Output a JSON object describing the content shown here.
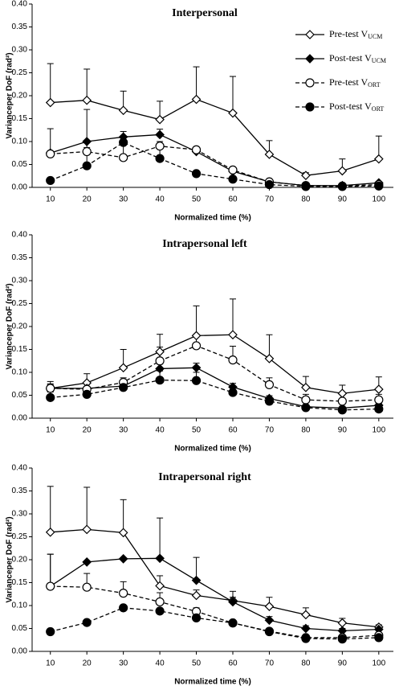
{
  "chart_data": [
    {
      "type": "line",
      "title": "Interpersonal",
      "xlabel": "Normalized time (%)",
      "ylabel": "Varianceper DoF (rad²)",
      "x": [
        10,
        20,
        30,
        40,
        50,
        60,
        70,
        80,
        90,
        100
      ],
      "xlim": [
        5,
        104
      ],
      "xticks": [
        10,
        20,
        30,
        40,
        50,
        60,
        70,
        80,
        90,
        100
      ],
      "ylim": [
        0,
        0.4
      ],
      "yticks": [
        {
          "value": 0,
          "label": "0.00"
        },
        {
          "value": 0.05,
          "label": "0.05"
        },
        {
          "value": 0.1,
          "label": "0.10"
        },
        {
          "value": 0.15,
          "label": "0.15"
        },
        {
          "value": 0.2,
          "label": "0.20"
        },
        {
          "value": 0.25,
          "label": "0.25"
        },
        {
          "value": 0.3,
          "label": "0.30"
        },
        {
          "value": 0.35,
          "label": "0.35"
        },
        {
          "value": 0.4,
          "label": "0.40"
        }
      ],
      "legend": "top-right",
      "series": [
        {
          "name": "Pre-test V",
          "name_sub": "UCM",
          "color": "#000",
          "marker": "diamond",
          "filled": false,
          "dashed": false,
          "values": [
            0.185,
            0.19,
            0.168,
            0.148,
            0.192,
            0.162,
            0.072,
            0.026,
            0.036,
            0.062
          ],
          "errors": [
            0.085,
            0.068,
            0.042,
            0.04,
            0.071,
            0.08,
            0.03,
            0.006,
            0.026,
            0.05
          ]
        },
        {
          "name": "Post-test V",
          "name_sub": "UCM",
          "color": "#000",
          "marker": "diamond",
          "filled": true,
          "dashed": false,
          "values": [
            0.075,
            0.1,
            0.11,
            0.115,
            0.078,
            0.035,
            0.012,
            0.004,
            0.004,
            0.01
          ],
          "errors": [
            null,
            0.07,
            0.012,
            0.012,
            0.008,
            0.006,
            0.004,
            null,
            null,
            null
          ]
        },
        {
          "name": "Pre-test V",
          "name_sub": "ORT",
          "color": "#000",
          "marker": "circle",
          "filled": false,
          "dashed": true,
          "values": [
            0.073,
            0.078,
            0.065,
            0.09,
            0.082,
            0.038,
            0.012,
            0.004,
            0.003,
            0.006
          ],
          "errors": [
            0.055,
            0.02,
            0.03,
            0.01,
            0.006,
            0.004,
            0.003,
            null,
            null,
            null
          ]
        },
        {
          "name": "Post-test V",
          "name_sub": "ORT",
          "color": "#000",
          "marker": "circle",
          "filled": true,
          "dashed": true,
          "values": [
            0.015,
            0.047,
            0.098,
            0.063,
            0.03,
            0.018,
            0.006,
            0.002,
            0.002,
            0.003
          ],
          "errors": [
            null,
            0.04,
            0.01,
            0.03,
            null,
            null,
            null,
            null,
            null,
            null
          ]
        }
      ]
    },
    {
      "type": "line",
      "title": "Intrapersonal left",
      "xlabel": "Normalized time (%)",
      "ylabel": "Varianceper DoF (rad²)",
      "x": [
        10,
        20,
        30,
        40,
        50,
        60,
        70,
        80,
        90,
        100
      ],
      "xlim": [
        5,
        104
      ],
      "xticks": [
        10,
        20,
        30,
        40,
        50,
        60,
        70,
        80,
        90,
        100
      ],
      "ylim": [
        0,
        0.4
      ],
      "yticks": [
        {
          "value": 0,
          "label": "0.00"
        },
        {
          "value": 0.05,
          "label": "0.05"
        },
        {
          "value": 0.1,
          "label": "0.10"
        },
        {
          "value": 0.15,
          "label": "0.15"
        },
        {
          "value": 0.2,
          "label": "0.20"
        },
        {
          "value": 0.25,
          "label": "0.25"
        },
        {
          "value": 0.3,
          "label": "0.30"
        },
        {
          "value": 0.35,
          "label": "0.35"
        },
        {
          "value": 0.4,
          "label": "0.40"
        }
      ],
      "series": [
        {
          "color": "#000",
          "marker": "diamond",
          "filled": false,
          "dashed": false,
          "values": [
            0.065,
            0.077,
            0.11,
            0.145,
            0.18,
            0.182,
            0.13,
            0.067,
            0.054,
            0.063
          ],
          "errors": [
            0.015,
            0.02,
            0.04,
            0.038,
            0.065,
            0.078,
            0.052,
            0.024,
            0.018,
            0.027
          ]
        },
        {
          "color": "#000",
          "marker": "diamond",
          "filled": true,
          "dashed": false,
          "values": [
            0.065,
            0.065,
            0.07,
            0.108,
            0.11,
            0.068,
            0.043,
            0.025,
            0.022,
            0.028
          ],
          "errors": [
            0.008,
            0.01,
            0.01,
            0.01,
            0.01,
            0.008,
            0.006,
            0.004,
            0.004,
            0.004
          ]
        },
        {
          "color": "#000",
          "marker": "circle",
          "filled": false,
          "dashed": true,
          "values": [
            0.065,
            0.063,
            0.078,
            0.125,
            0.158,
            0.127,
            0.073,
            0.04,
            0.037,
            0.04
          ],
          "errors": [
            0.01,
            0.015,
            0.01,
            0.03,
            0.02,
            0.03,
            0.015,
            0.012,
            0.015,
            0.012
          ]
        },
        {
          "color": "#000",
          "marker": "circle",
          "filled": true,
          "dashed": true,
          "values": [
            0.045,
            0.052,
            0.067,
            0.083,
            0.082,
            0.056,
            0.037,
            0.023,
            0.018,
            0.02
          ],
          "errors": [
            0.012,
            0.01,
            0.015,
            0.02,
            0.018,
            0.01,
            0.006,
            0.004,
            0.004,
            0.004
          ]
        }
      ]
    },
    {
      "type": "line",
      "title": "Intrapersonal right",
      "xlabel": "Normalized time (%)",
      "ylabel": "Varianceper DoF (rad²)",
      "x": [
        10,
        20,
        30,
        40,
        50,
        60,
        70,
        80,
        90,
        100
      ],
      "xlim": [
        5,
        104
      ],
      "xticks": [
        10,
        20,
        30,
        40,
        50,
        60,
        70,
        80,
        90,
        100
      ],
      "ylim": [
        0,
        0.4
      ],
      "yticks": [
        {
          "value": 0,
          "label": "0.00"
        },
        {
          "value": 0.05,
          "label": "0.05"
        },
        {
          "value": 0.1,
          "label": "0.10"
        },
        {
          "value": 0.15,
          "label": "0.15"
        },
        {
          "value": 0.2,
          "label": "0.20"
        },
        {
          "value": 0.25,
          "label": "0.25"
        },
        {
          "value": 0.3,
          "label": "0.30"
        },
        {
          "value": 0.35,
          "label": "0.35"
        },
        {
          "value": 0.4,
          "label": "0.40"
        }
      ],
      "series": [
        {
          "color": "#000",
          "marker": "diamond",
          "filled": false,
          "dashed": false,
          "values": [
            0.26,
            0.266,
            0.259,
            0.143,
            0.122,
            0.111,
            0.098,
            0.08,
            0.062,
            0.053
          ],
          "errors": [
            0.1,
            0.092,
            0.072,
            0.022,
            0.012,
            0.02,
            0.02,
            0.015,
            0.01,
            0.005
          ]
        },
        {
          "color": "#000",
          "marker": "diamond",
          "filled": true,
          "dashed": false,
          "values": [
            0.142,
            0.195,
            0.202,
            0.203,
            0.155,
            0.108,
            0.068,
            0.05,
            0.045,
            0.048
          ],
          "errors": [
            0.07,
            null,
            null,
            0.088,
            0.05,
            0.01,
            0.008,
            0.006,
            0.005,
            0.005
          ]
        },
        {
          "color": "#000",
          "marker": "circle",
          "filled": false,
          "dashed": true,
          "values": [
            0.142,
            0.14,
            0.127,
            0.108,
            0.087,
            0.062,
            0.044,
            0.03,
            0.03,
            0.035
          ],
          "errors": [
            0.07,
            0.03,
            0.025,
            0.02,
            0.008,
            0.006,
            0.004,
            0.004,
            0.004,
            0.004
          ]
        },
        {
          "color": "#000",
          "marker": "circle",
          "filled": true,
          "dashed": true,
          "values": [
            0.043,
            0.063,
            0.095,
            0.088,
            0.073,
            0.062,
            0.043,
            0.028,
            0.027,
            0.03
          ],
          "errors": [
            null,
            null,
            null,
            null,
            null,
            null,
            null,
            null,
            null,
            null
          ]
        }
      ]
    }
  ]
}
